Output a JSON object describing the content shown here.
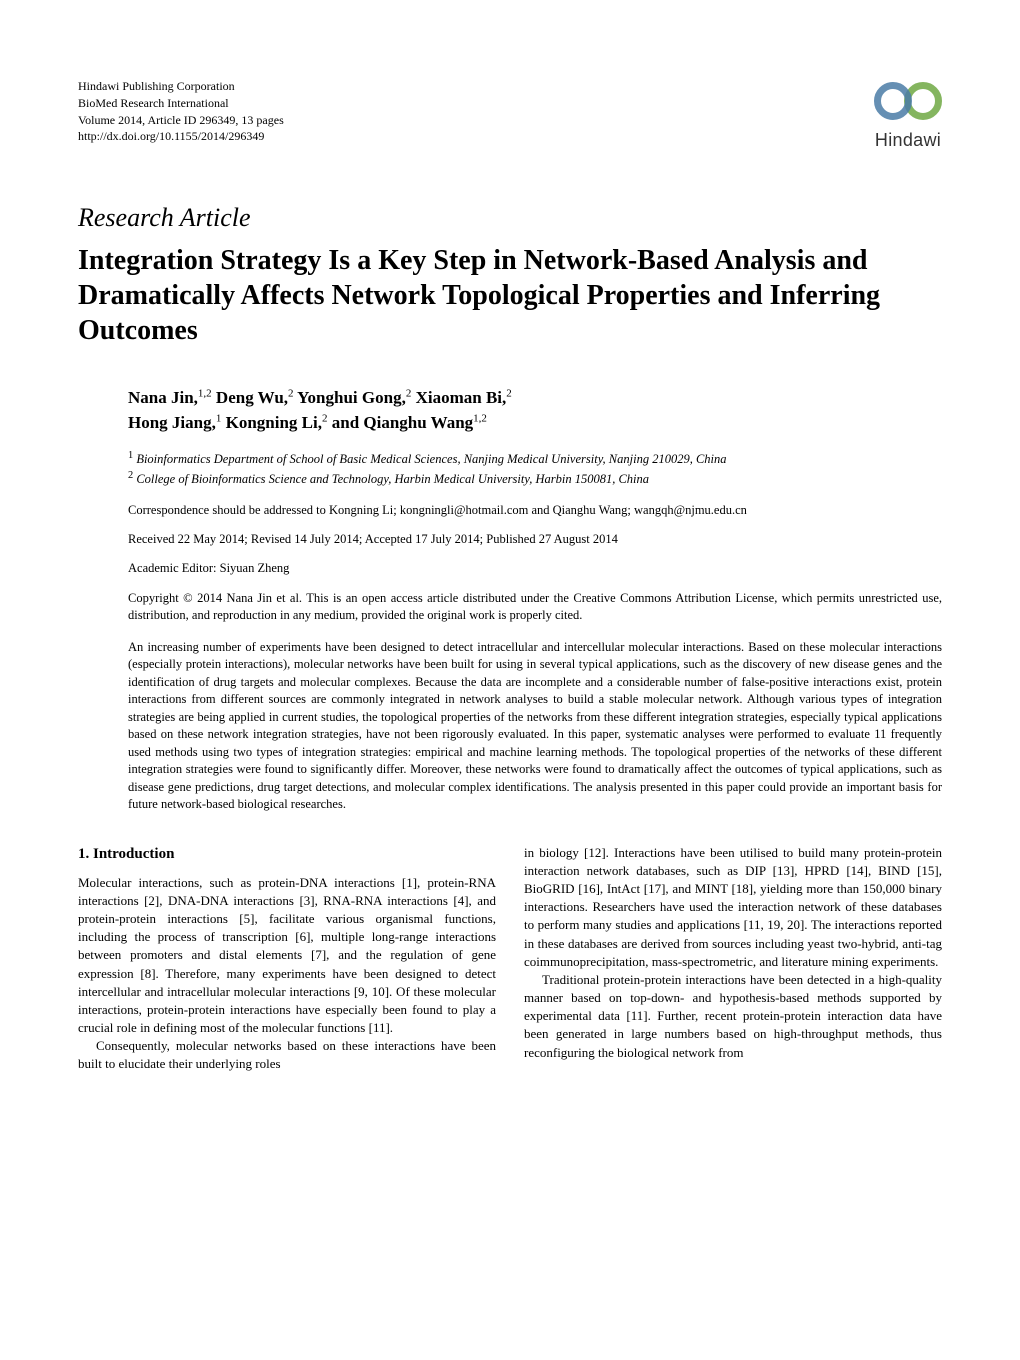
{
  "header": {
    "publisher": "Hindawi Publishing Corporation",
    "journal": "BioMed Research International",
    "volume_info": "Volume 2014, Article ID 296349, 13 pages",
    "doi": "http://dx.doi.org/10.1155/2014/296349",
    "logo_text": "Hindawi"
  },
  "article_type": "Research Article",
  "title": "Integration Strategy Is a Key Step in Network-Based Analysis and Dramatically Affects Network Topological Properties and Inferring Outcomes",
  "authors_line1": "Nana Jin,",
  "authors_sup1": "1,2",
  "authors_part2": " Deng Wu,",
  "authors_sup2": "2",
  "authors_part3": " Yonghui Gong,",
  "authors_sup3": "2",
  "authors_part4": " Xiaoman Bi,",
  "authors_sup4": "2",
  "authors_line2_p1": "Hong Jiang,",
  "authors_sup5": "1",
  "authors_line2_p2": " Kongning Li,",
  "authors_sup6": "2",
  "authors_line2_p3": " and Qianghu Wang",
  "authors_sup7": "1,2",
  "affiliations": {
    "aff1_num": "1",
    "aff1": " Bioinformatics Department of School of Basic Medical Sciences, Nanjing Medical University, Nanjing 210029, China",
    "aff2_num": "2",
    "aff2": " College of Bioinformatics Science and Technology, Harbin Medical University, Harbin 150081, China"
  },
  "correspondence": "Correspondence should be addressed to Kongning Li; kongningli@hotmail.com and Qianghu Wang; wangqh@njmu.edu.cn",
  "dates": "Received 22 May 2014; Revised 14 July 2014; Accepted 17 July 2014; Published 27 August 2014",
  "editor": "Academic Editor: Siyuan Zheng",
  "copyright": "Copyright © 2014 Nana Jin et al. This is an open access article distributed under the Creative Commons Attribution License, which permits unrestricted use, distribution, and reproduction in any medium, provided the original work is properly cited.",
  "abstract": "An increasing number of experiments have been designed to detect intracellular and intercellular molecular interactions. Based on these molecular interactions (especially protein interactions), molecular networks have been built for using in several typical applications, such as the discovery of new disease genes and the identification of drug targets and molecular complexes. Because the data are incomplete and a considerable number of false-positive interactions exist, protein interactions from different sources are commonly integrated in network analyses to build a stable molecular network. Although various types of integration strategies are being applied in current studies, the topological properties of the networks from these different integration strategies, especially typical applications based on these network integration strategies, have not been rigorously evaluated. In this paper, systematic analyses were performed to evaluate 11 frequently used methods using two types of integration strategies: empirical and machine learning methods. The topological properties of the networks of these different integration strategies were found to significantly differ. Moreover, these networks were found to dramatically affect the outcomes of typical applications, such as disease gene predictions, drug target detections, and molecular complex identifications. The analysis presented in this paper could provide an important basis for future network-based biological researches.",
  "section1_heading": "1. Introduction",
  "col1_para1": "Molecular interactions, such as protein-DNA interactions [1], protein-RNA interactions [2], DNA-DNA interactions [3], RNA-RNA interactions [4], and protein-protein interactions [5], facilitate various organismal functions, including the process of transcription [6], multiple long-range interactions between promoters and distal elements [7], and the regulation of gene expression [8]. Therefore, many experiments have been designed to detect intercellular and intracellular molecular interactions [9, 10]. Of these molecular interactions, protein-protein interactions have especially been found to play a crucial role in defining most of the molecular functions [11].",
  "col1_para2": "Consequently, molecular networks based on these interactions have been built to elucidate their underlying roles",
  "col2_para1": "in biology [12]. Interactions have been utilised to build many protein-protein interaction network databases, such as DIP [13], HPRD [14], BIND [15], BioGRID [16], IntAct [17], and MINT [18], yielding more than 150,000 binary interactions. Researchers have used the interaction network of these databases to perform many studies and applications [11, 19, 20]. The interactions reported in these databases are derived from sources including yeast two-hybrid, anti-tag coimmunoprecipitation, mass-spectrometric, and literature mining experiments.",
  "col2_para2": "Traditional protein-protein interactions have been detected in a high-quality manner based on top-down- and hypothesis-based methods supported by experimental data [11]. Further, recent protein-protein interaction data have been generated in large numbers based on high-throughput methods, thus reconfiguring the biological network from",
  "colors": {
    "text": "#000000",
    "background": "#ffffff",
    "logo_blue": "#4a7ba6",
    "logo_green": "#6fa843"
  }
}
